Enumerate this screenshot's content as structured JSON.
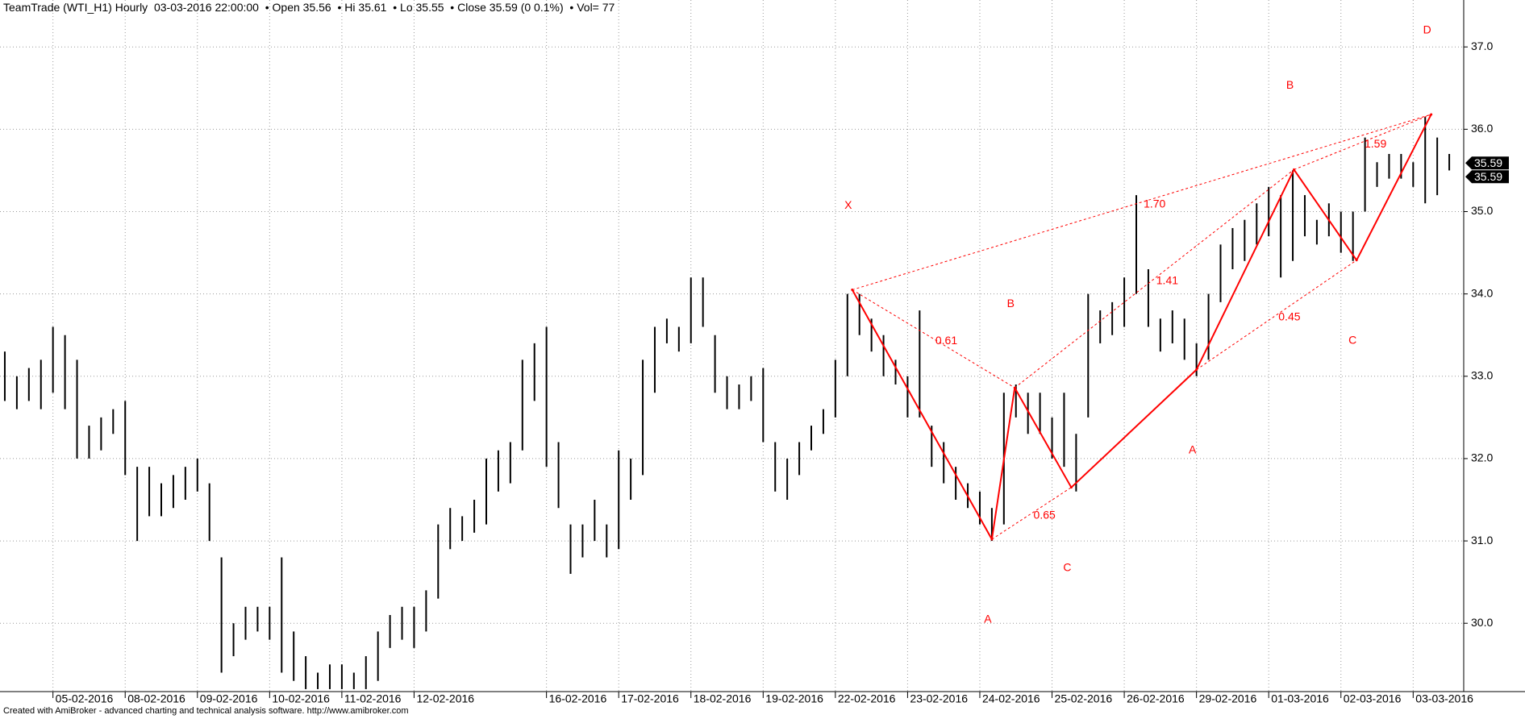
{
  "chart_data": {
    "type": "ohlc",
    "header": [
      "TeamTrade (WTI_H1) Hourly",
      "03-03-2016 22:00:00",
      "Open 35.56",
      "Hi 35.61",
      "Lo 35.55",
      "Close 35.59 (0 0.1%)",
      "Vol= 77"
    ],
    "footer": "Created with AmiBroker - advanced charting and technical analysis software. http://www.amibroker.com",
    "bar_color": "#000000",
    "grid": true,
    "xlim": [
      -0.4,
      121.2
    ],
    "ylim": [
      29.17,
      37.57
    ],
    "yticks": [
      {
        "value": 30,
        "label": "30.0"
      },
      {
        "value": 31,
        "label": "31.0"
      },
      {
        "value": 32,
        "label": "32.0"
      },
      {
        "value": 33,
        "label": "33.0"
      },
      {
        "value": 34,
        "label": "34.0"
      },
      {
        "value": 35,
        "label": "35.0"
      },
      {
        "value": 36,
        "label": "36.0"
      },
      {
        "value": 37,
        "label": "37.0"
      }
    ],
    "xticks": [
      {
        "value": 4,
        "label": "05-02-2016"
      },
      {
        "value": 10,
        "label": "08-02-2016"
      },
      {
        "value": 16,
        "label": "09-02-2016"
      },
      {
        "value": 22,
        "label": "10-02-2016"
      },
      {
        "value": 28,
        "label": "11-02-2016"
      },
      {
        "value": 34,
        "label": "12-02-2016"
      },
      {
        "value": 45,
        "label": "16-02-2016"
      },
      {
        "value": 51,
        "label": "17-02-2016"
      },
      {
        "value": 57,
        "label": "18-02-2016"
      },
      {
        "value": 63,
        "label": "19-02-2016"
      },
      {
        "value": 69,
        "label": "22-02-2016"
      },
      {
        "value": 75,
        "label": "23-02-2016"
      },
      {
        "value": 81,
        "label": "24-02-2016"
      },
      {
        "value": 87,
        "label": "25-02-2016"
      },
      {
        "value": 93,
        "label": "26-02-2016"
      },
      {
        "value": 99,
        "label": "29-02-2016"
      },
      {
        "value": 105,
        "label": "01-03-2016"
      },
      {
        "value": 111,
        "label": "02-03-2016"
      },
      {
        "value": 117,
        "label": "03-03-2016"
      }
    ],
    "high": [
      33.3,
      33.0,
      33.1,
      33.2,
      33.6,
      33.5,
      33.2,
      32.4,
      32.5,
      32.6,
      32.7,
      31.9,
      31.9,
      31.7,
      31.8,
      31.9,
      32.0,
      31.7,
      30.8,
      30.0,
      30.2,
      30.2,
      30.2,
      30.8,
      29.9,
      29.6,
      29.4,
      29.5,
      29.5,
      29.4,
      29.6,
      29.9,
      30.1,
      30.2,
      30.2,
      30.4,
      31.2,
      31.4,
      31.3,
      31.5,
      32.0,
      32.1,
      32.2,
      33.2,
      33.4,
      33.6,
      32.2,
      31.2,
      31.2,
      31.5,
      31.2,
      32.1,
      32.0,
      33.2,
      33.6,
      33.7,
      33.6,
      34.2,
      34.2,
      33.5,
      33.0,
      32.9,
      33.0,
      33.1,
      32.2,
      32.0,
      32.2,
      32.4,
      32.6,
      33.2,
      34.0,
      34.0,
      33.7,
      33.5,
      33.2,
      33.0,
      33.8,
      32.4,
      32.2,
      31.9,
      31.7,
      31.6,
      31.4,
      32.8,
      32.9,
      32.8,
      32.8,
      32.5,
      32.8,
      32.3,
      34.0,
      33.8,
      33.9,
      34.2,
      35.2,
      34.3,
      33.7,
      33.8,
      33.7,
      33.4,
      34.0,
      34.6,
      34.8,
      34.9,
      35.1,
      35.3,
      35.2,
      35.5,
      35.2,
      34.9,
      35.1,
      35.0,
      35.0,
      35.9,
      35.6,
      35.7,
      35.7,
      35.6,
      36.15,
      35.9,
      35.7
    ],
    "low": [
      32.7,
      32.6,
      32.7,
      32.6,
      32.8,
      32.6,
      32.0,
      32.0,
      32.1,
      32.3,
      31.8,
      31.0,
      31.3,
      31.3,
      31.4,
      31.5,
      31.6,
      31.0,
      29.4,
      29.6,
      29.8,
      29.9,
      29.8,
      29.4,
      29.3,
      29.2,
      29.2,
      29.2,
      29.2,
      29.2,
      29.2,
      29.3,
      29.7,
      29.8,
      29.7,
      29.9,
      30.3,
      30.9,
      31.0,
      31.1,
      31.2,
      31.6,
      31.7,
      32.1,
      32.7,
      31.9,
      31.4,
      30.6,
      30.8,
      31.0,
      30.8,
      30.9,
      31.5,
      31.8,
      32.8,
      33.4,
      33.3,
      33.4,
      33.6,
      32.8,
      32.6,
      32.6,
      32.7,
      32.2,
      31.6,
      31.5,
      31.8,
      32.1,
      32.3,
      32.5,
      33.0,
      33.5,
      33.3,
      33.0,
      32.9,
      32.5,
      32.5,
      31.9,
      31.7,
      31.5,
      31.4,
      31.2,
      31.0,
      31.2,
      32.5,
      32.3,
      32.3,
      32.0,
      31.9,
      31.6,
      32.5,
      33.4,
      33.5,
      33.6,
      34.0,
      33.6,
      33.3,
      33.4,
      33.2,
      33.0,
      33.2,
      33.9,
      34.3,
      34.4,
      34.6,
      34.7,
      34.2,
      34.4,
      34.7,
      34.6,
      34.7,
      34.5,
      34.4,
      35.0,
      35.3,
      35.4,
      35.4,
      35.3,
      35.1,
      35.2,
      35.5
    ],
    "price_markers": [
      35.59,
      35.59
    ],
    "pattern": {
      "color": "#ff0000",
      "points": [
        {
          "label": "X",
          "x": 70.4,
          "y": 34.05
        },
        {
          "label": "A",
          "x": 82.0,
          "y": 31.02
        },
        {
          "label": "B",
          "x": 83.9,
          "y": 32.86
        },
        {
          "label": "C",
          "x": 88.6,
          "y": 31.65
        },
        {
          "label": "A",
          "x": 99.0,
          "y": 33.08
        },
        {
          "label": "B",
          "x": 107.1,
          "y": 35.51
        },
        {
          "label": "C",
          "x": 112.3,
          "y": 34.41
        },
        {
          "label": "D",
          "x": 118.5,
          "y": 36.18
        }
      ],
      "ratios": [
        {
          "label": "0.61",
          "from": [
            70.4,
            34.05
          ],
          "to": [
            83.9,
            32.86
          ]
        },
        {
          "label": "1.70",
          "from": [
            70.4,
            34.05
          ],
          "to": [
            118.5,
            36.18
          ]
        },
        {
          "label": "0.65",
          "from": [
            82.0,
            31.02
          ],
          "to": [
            88.6,
            31.65
          ]
        },
        {
          "label": "1.41",
          "from": [
            83.9,
            32.86
          ],
          "to": [
            107.1,
            35.51
          ]
        },
        {
          "label": "0.45",
          "from": [
            99.0,
            33.08
          ],
          "to": [
            112.3,
            34.41
          ]
        },
        {
          "label": "1.59",
          "from": [
            107.1,
            35.51
          ],
          "to": [
            118.5,
            36.18
          ]
        }
      ]
    }
  }
}
